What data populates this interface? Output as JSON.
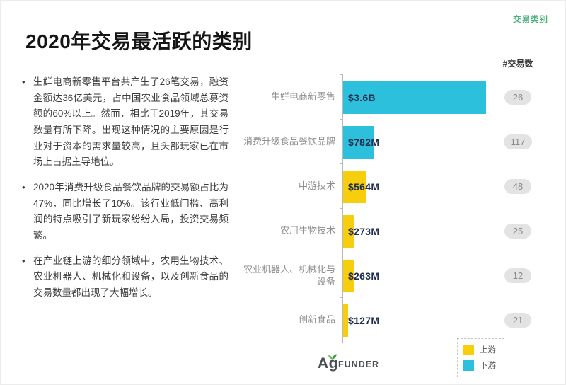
{
  "page": {
    "title": "2020年交易最活跃的类别",
    "corner_tag": "交易类别",
    "corner_tag_color": "#4bb27c"
  },
  "bullets": [
    "生鲜电商新零售平台共产生了26笔交易，融资金额达36亿美元，占中国农业食品领域总募资额的60%以上。然而，相比于2019年，其交易数量有所下降。出现这种情况的主要原因是行业对于资本的需求量较高，且头部玩家已在市场上占据主导地位。",
    "2020年消费升级食品餐饮品牌的交易额占比为47%，同比增长了10%。该行业低门槛、高利润的特点吸引了新玩家纷纷入局，投资交易频繁。",
    "在产业链上游的细分领域中，农用生物技术、农业机器人、机械化和设备，以及创新食品的交易数量都出现了大幅增长。"
  ],
  "chart_data": {
    "type": "bar",
    "orientation": "horizontal",
    "title": "2020年交易最活跃的类别",
    "categories": [
      "生鲜电商新零售",
      "消费升级食品餐饮品牌",
      "中游技术",
      "农用生物技术",
      "农业机器人、机械化与设备",
      "创新食品"
    ],
    "values_musd": [
      3600,
      782,
      564,
      273,
      263,
      127
    ],
    "value_labels": [
      "$3.6B",
      "$782M",
      "$564M",
      "$273M",
      "$263M",
      "$127M"
    ],
    "groups": [
      "下游",
      "下游",
      "上游",
      "上游",
      "上游",
      "上游"
    ],
    "deal_count_header": "#交易数",
    "deal_counts": [
      26,
      117,
      48,
      25,
      12,
      21
    ],
    "xlim_musd": [
      0,
      3600
    ],
    "grid": false,
    "legend_position": "bottom-right",
    "legend": [
      {
        "label": "上游",
        "color": "#f6ce0d"
      },
      {
        "label": "下游",
        "color": "#2cc0dc"
      }
    ],
    "colors": {
      "上游": "#f6ce0d",
      "下游": "#2cc0dc"
    }
  },
  "footer": {
    "logo_ag": "Ag",
    "logo_rest": "FUNDER"
  }
}
